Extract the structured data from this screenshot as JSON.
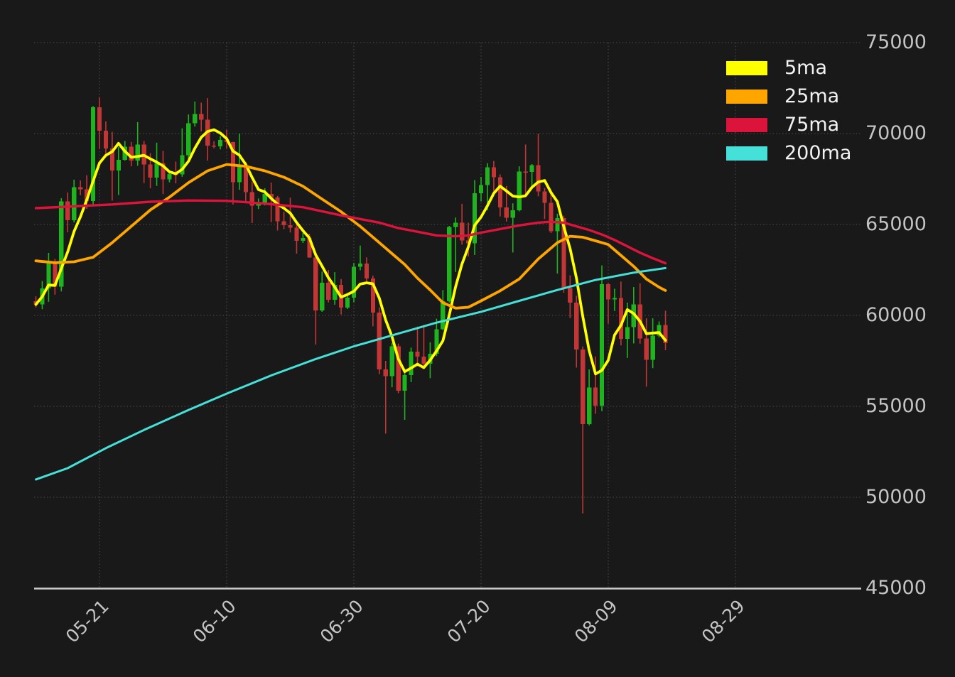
{
  "chart_data": {
    "type": "candlestick",
    "title": "",
    "y_axis": {
      "range": [
        45000,
        75000
      ],
      "ticks": [
        {
          "label": "75000",
          "value": 75000
        },
        {
          "label": "70000",
          "value": 70000
        },
        {
          "label": "65000",
          "value": 65000
        },
        {
          "label": "60000",
          "value": 60000
        },
        {
          "label": "55000",
          "value": 55000
        },
        {
          "label": "50000",
          "value": 50000
        },
        {
          "label": "45000",
          "value": 45000
        }
      ],
      "grid": true
    },
    "x_axis": {
      "ticks": [
        {
          "label": "05-21",
          "day_index": 10
        },
        {
          "label": "06-10",
          "day_index": 30
        },
        {
          "label": "06-30",
          "day_index": 50
        },
        {
          "label": "07-20",
          "day_index": 70
        },
        {
          "label": "08-09",
          "day_index": 90
        },
        {
          "label": "08-29",
          "day_index": 110
        }
      ],
      "grid": true
    },
    "candles": {
      "columns": [
        "date",
        "open",
        "high",
        "low",
        "close"
      ],
      "rows": [
        [
          "05-11",
          60790,
          61050,
          60440,
          60600
        ],
        [
          "05-12",
          60600,
          61890,
          60340,
          61480
        ],
        [
          "05-13",
          61480,
          63440,
          60750,
          62940
        ],
        [
          "05-14",
          62940,
          63110,
          61140,
          61580
        ],
        [
          "05-15",
          61580,
          66440,
          61320,
          66270
        ],
        [
          "05-16",
          66270,
          66760,
          64570,
          65230
        ],
        [
          "05-17",
          65230,
          67460,
          65110,
          67050
        ],
        [
          "05-18",
          67050,
          67420,
          66610,
          66940
        ],
        [
          "05-19",
          66940,
          67710,
          65860,
          66280
        ],
        [
          "05-20",
          66280,
          71510,
          66060,
          71450
        ],
        [
          "05-21",
          71440,
          71980,
          69160,
          70150
        ],
        [
          "05-22",
          70150,
          70670,
          68840,
          69180
        ],
        [
          "05-23",
          69180,
          70100,
          66310,
          67970
        ],
        [
          "05-24",
          67970,
          69260,
          66620,
          68550
        ],
        [
          "05-25",
          68550,
          69590,
          68510,
          69270
        ],
        [
          "05-26",
          69270,
          69540,
          68200,
          68510
        ],
        [
          "05-27",
          68510,
          70630,
          68230,
          69390
        ],
        [
          "05-28",
          69390,
          69590,
          67280,
          68300
        ],
        [
          "05-29",
          68300,
          68920,
          66990,
          67580
        ],
        [
          "05-30",
          67580,
          69500,
          67120,
          68360
        ],
        [
          "05-31",
          68360,
          69050,
          66670,
          67490
        ],
        [
          "06-01",
          67490,
          67900,
          67320,
          67770
        ],
        [
          "06-02",
          67770,
          68460,
          67260,
          67750
        ],
        [
          "06-03",
          67750,
          70290,
          67620,
          68800
        ],
        [
          "06-04",
          68800,
          71050,
          68570,
          70570
        ],
        [
          "06-05",
          70570,
          71760,
          70380,
          71080
        ],
        [
          "06-06",
          71080,
          71700,
          70120,
          70760
        ],
        [
          "06-07",
          70760,
          71950,
          68510,
          69340
        ],
        [
          "06-08",
          69340,
          69580,
          69190,
          69300
        ],
        [
          "06-09",
          69300,
          69850,
          69130,
          69650
        ],
        [
          "06-10",
          69650,
          70200,
          69180,
          69540
        ],
        [
          "06-11",
          69540,
          69550,
          66100,
          67330
        ],
        [
          "06-12",
          67330,
          70000,
          66910,
          68240
        ],
        [
          "06-13",
          68240,
          68440,
          66250,
          66770
        ],
        [
          "06-14",
          66770,
          67350,
          65080,
          66040
        ],
        [
          "06-15",
          66040,
          66430,
          65850,
          66220
        ],
        [
          "06-16",
          66220,
          66990,
          66050,
          66670
        ],
        [
          "06-17",
          66670,
          67300,
          65130,
          66480
        ],
        [
          "06-18",
          66480,
          66570,
          64670,
          65170
        ],
        [
          "06-19",
          65170,
          65700,
          64740,
          64960
        ],
        [
          "06-20",
          64960,
          66480,
          64560,
          64830
        ],
        [
          "06-21",
          64830,
          65000,
          63400,
          64100
        ],
        [
          "06-22",
          64100,
          64540,
          63980,
          64250
        ],
        [
          "06-23",
          64250,
          64490,
          63170,
          63180
        ],
        [
          "06-24",
          63180,
          63370,
          58400,
          60280
        ],
        [
          "06-25",
          60280,
          62410,
          60200,
          61790
        ],
        [
          "06-26",
          61790,
          62490,
          60710,
          60860
        ],
        [
          "06-27",
          60860,
          62380,
          60590,
          61680
        ],
        [
          "06-28",
          61680,
          62000,
          60050,
          60430
        ],
        [
          "06-29",
          60430,
          61120,
          60350,
          60980
        ],
        [
          "06-30",
          60980,
          62890,
          60720,
          62680
        ],
        [
          "07-01",
          62680,
          63840,
          62480,
          62850
        ],
        [
          "07-02",
          62850,
          63190,
          61770,
          62030
        ],
        [
          "07-03",
          62030,
          62190,
          59400,
          60150
        ],
        [
          "07-04",
          60150,
          60440,
          56770,
          57040
        ],
        [
          "07-05",
          57040,
          57500,
          53500,
          56660
        ],
        [
          "07-06",
          56660,
          58470,
          56050,
          58300
        ],
        [
          "07-07",
          58300,
          58450,
          55720,
          55850
        ],
        [
          "07-08",
          55850,
          57070,
          54260,
          56710
        ],
        [
          "07-09",
          56710,
          58230,
          56330,
          58010
        ],
        [
          "07-10",
          58010,
          59390,
          57200,
          57740
        ],
        [
          "07-11",
          57740,
          59470,
          57120,
          57340
        ],
        [
          "07-12",
          57340,
          58520,
          56550,
          57900
        ],
        [
          "07-13",
          57900,
          59820,
          57760,
          59230
        ],
        [
          "07-14",
          59230,
          61390,
          59190,
          60790
        ],
        [
          "07-15",
          60790,
          64920,
          60710,
          64870
        ],
        [
          "07-16",
          64870,
          65380,
          62390,
          65100
        ],
        [
          "07-17",
          65100,
          66130,
          63890,
          64120
        ],
        [
          "07-18",
          64120,
          65100,
          63240,
          63970
        ],
        [
          "07-19",
          63970,
          67440,
          63320,
          66710
        ],
        [
          "07-20",
          66710,
          67620,
          66270,
          67160
        ],
        [
          "07-21",
          67160,
          68370,
          65780,
          68150
        ],
        [
          "07-22",
          68150,
          68490,
          66590,
          67590
        ],
        [
          "07-23",
          67590,
          67750,
          65440,
          65930
        ],
        [
          "07-24",
          65930,
          67120,
          65160,
          65370
        ],
        [
          "07-25",
          65370,
          66160,
          63460,
          65780
        ],
        [
          "07-26",
          65780,
          68200,
          65720,
          67910
        ],
        [
          "07-27",
          67910,
          69400,
          66650,
          67900
        ],
        [
          "07-28",
          67900,
          68320,
          67100,
          68260
        ],
        [
          "07-29",
          68260,
          69990,
          66550,
          66820
        ],
        [
          "07-30",
          66820,
          67000,
          65300,
          66200
        ],
        [
          "07-31",
          66200,
          66810,
          64530,
          64620
        ],
        [
          "08-01",
          64620,
          65590,
          62300,
          65350
        ],
        [
          "08-02",
          65350,
          65480,
          61250,
          61500
        ],
        [
          "08-03",
          61500,
          62200,
          59850,
          60700
        ],
        [
          "08-04",
          60700,
          61090,
          57130,
          58120
        ],
        [
          "08-05",
          58120,
          58290,
          49110,
          54020
        ],
        [
          "08-06",
          54020,
          57030,
          53950,
          56030
        ],
        [
          "08-07",
          56030,
          57740,
          54590,
          55030
        ],
        [
          "08-08",
          55030,
          62750,
          54730,
          61710
        ],
        [
          "08-09",
          61710,
          61760,
          59550,
          60880
        ],
        [
          "08-10",
          60880,
          61470,
          60240,
          60950
        ],
        [
          "08-11",
          60950,
          61860,
          58350,
          58720
        ],
        [
          "08-12",
          58720,
          60700,
          57660,
          59350
        ],
        [
          "08-13",
          59350,
          61560,
          58460,
          60610
        ],
        [
          "08-14",
          60610,
          61770,
          58440,
          58740
        ],
        [
          "08-15",
          58740,
          59840,
          56080,
          57560
        ],
        [
          "08-16",
          57560,
          59840,
          57100,
          58890
        ],
        [
          "08-17",
          58890,
          59670,
          58790,
          59480
        ],
        [
          "08-18",
          59480,
          60260,
          58090,
          58480
        ]
      ]
    },
    "overlays": [
      {
        "name": "5ma",
        "color": "#ffff00",
        "type": "sma",
        "window": 5,
        "source": "close",
        "width": 3.8
      },
      {
        "name": "25ma",
        "color": "#ffa500",
        "type": "sampled",
        "width": 3.8,
        "points": [
          [
            0,
            63000
          ],
          [
            3,
            62900
          ],
          [
            6,
            62950
          ],
          [
            9,
            63200
          ],
          [
            12,
            64000
          ],
          [
            15,
            64900
          ],
          [
            18,
            65800
          ],
          [
            21,
            66500
          ],
          [
            24,
            67300
          ],
          [
            27,
            67950
          ],
          [
            30,
            68300
          ],
          [
            33,
            68200
          ],
          [
            36,
            67950
          ],
          [
            39,
            67600
          ],
          [
            42,
            67100
          ],
          [
            45,
            66400
          ],
          [
            48,
            65700
          ],
          [
            51,
            64900
          ],
          [
            54,
            64000
          ],
          [
            56,
            63400
          ],
          [
            58,
            62800
          ],
          [
            60,
            62050
          ],
          [
            62,
            61400
          ],
          [
            64,
            60700
          ],
          [
            66,
            60400
          ],
          [
            68,
            60450
          ],
          [
            70,
            60800
          ],
          [
            73,
            61350
          ],
          [
            76,
            62000
          ],
          [
            79,
            63100
          ],
          [
            82,
            64000
          ],
          [
            84,
            64350
          ],
          [
            86,
            64300
          ],
          [
            88,
            64100
          ],
          [
            90,
            63900
          ],
          [
            92,
            63300
          ],
          [
            94,
            62700
          ],
          [
            96,
            62000
          ],
          [
            98,
            61550
          ],
          [
            99,
            61370
          ]
        ]
      },
      {
        "name": "75ma",
        "color": "#dc143c",
        "type": "sampled",
        "width": 3.4,
        "points": [
          [
            0,
            65900
          ],
          [
            6,
            66000
          ],
          [
            12,
            66100
          ],
          [
            18,
            66250
          ],
          [
            24,
            66320
          ],
          [
            30,
            66300
          ],
          [
            36,
            66150
          ],
          [
            42,
            65950
          ],
          [
            48,
            65500
          ],
          [
            51,
            65300
          ],
          [
            54,
            65100
          ],
          [
            57,
            64800
          ],
          [
            60,
            64600
          ],
          [
            63,
            64400
          ],
          [
            66,
            64350
          ],
          [
            68,
            64400
          ],
          [
            70,
            64550
          ],
          [
            73,
            64750
          ],
          [
            76,
            64950
          ],
          [
            79,
            65100
          ],
          [
            81,
            65150
          ],
          [
            83,
            65100
          ],
          [
            85,
            64900
          ],
          [
            87,
            64700
          ],
          [
            89,
            64450
          ],
          [
            91,
            64150
          ],
          [
            93,
            63800
          ],
          [
            95,
            63450
          ],
          [
            97,
            63150
          ],
          [
            99,
            62870
          ]
        ]
      },
      {
        "name": "200ma",
        "color": "#45e0d8",
        "type": "sampled",
        "width": 3.0,
        "points": [
          [
            0,
            50980
          ],
          [
            5,
            51600
          ],
          [
            11,
            52700
          ],
          [
            17,
            53700
          ],
          [
            24,
            54800
          ],
          [
            30,
            55700
          ],
          [
            37,
            56700
          ],
          [
            44,
            57600
          ],
          [
            50,
            58300
          ],
          [
            57,
            59000
          ],
          [
            63,
            59600
          ],
          [
            70,
            60200
          ],
          [
            76,
            60800
          ],
          [
            82,
            61400
          ],
          [
            88,
            61950
          ],
          [
            94,
            62350
          ],
          [
            99,
            62600
          ]
        ]
      }
    ],
    "legend": [
      {
        "label": "5ma",
        "color": "#ffff00"
      },
      {
        "label": "25ma",
        "color": "#ffa500"
      },
      {
        "label": "75ma",
        "color": "#dc143c"
      },
      {
        "label": "200ma",
        "color": "#45e0d8"
      }
    ],
    "colors": {
      "background": "#191919",
      "candle_up": "#1fb41f",
      "candle_down": "#c23636",
      "grid": "#9a9a9a",
      "axis_line": "#cccccc",
      "tick_text": "#c4c4c4",
      "legend_text": "#f2f2f2"
    }
  }
}
